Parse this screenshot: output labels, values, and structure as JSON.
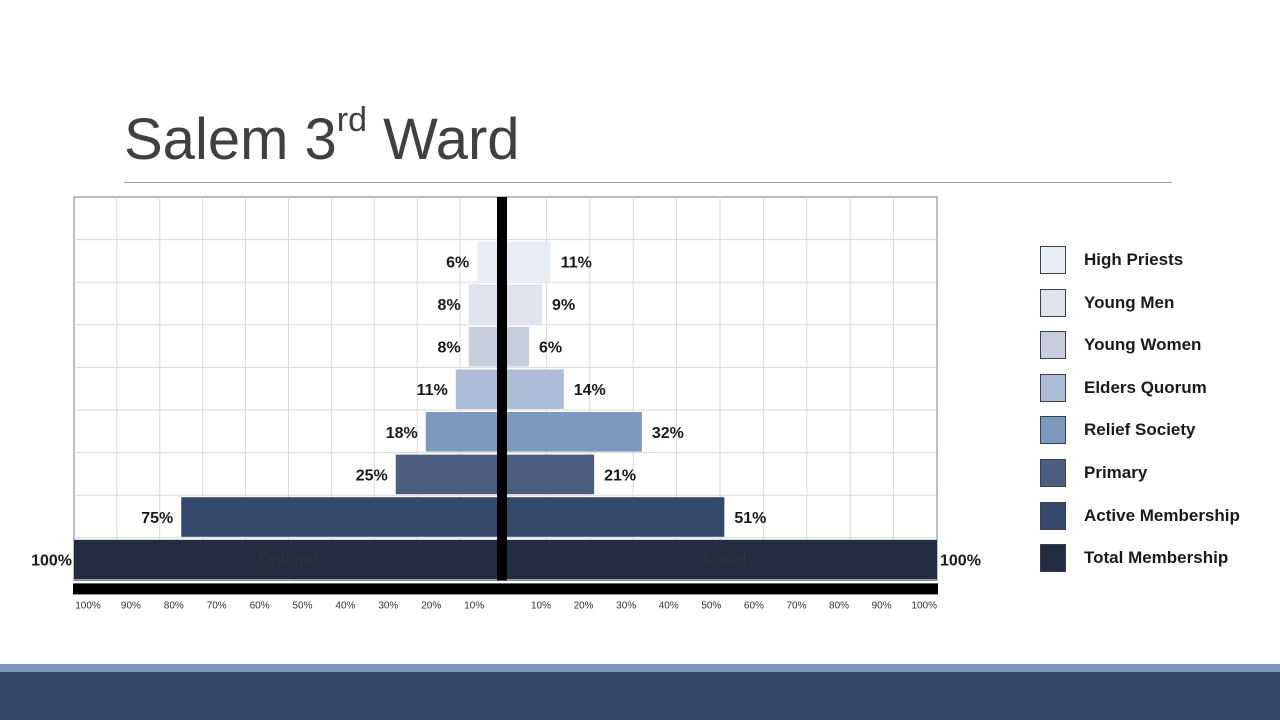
{
  "slide": {
    "title_main": "Salem 3",
    "title_sup": "rd",
    "title_end": " Ward"
  },
  "chart_data": {
    "type": "bar",
    "orientation": "horizontal-butterfly",
    "categories": [
      "High Priests",
      "Young Men",
      "Young Women",
      "Elders Quorum",
      "Relief Society",
      "Primary",
      "Active Membership",
      "Total Membership"
    ],
    "series": [
      {
        "name": "Optimal",
        "side": "left",
        "values": [
          6,
          8,
          8,
          11,
          18,
          25,
          75,
          100
        ],
        "labels": [
          "6%",
          "8%",
          "8%",
          "11%",
          "18%",
          "25%",
          "75%",
          "100%"
        ]
      },
      {
        "name": "Actual",
        "side": "right",
        "values": [
          11,
          9,
          6,
          14,
          32,
          21,
          51,
          100
        ],
        "labels": [
          "11%",
          "9%",
          "6%",
          "14%",
          "32%",
          "21%",
          "51%",
          "100%"
        ]
      }
    ],
    "colors": [
      "#e9edf4",
      "#dfe3ec",
      "#c7cddc",
      "#adbdd8",
      "#7d99bf",
      "#4d5d80",
      "#34496b",
      "#222d42"
    ],
    "xlim": [
      0,
      100
    ],
    "left_ticks": [
      "100%",
      "90%",
      "80%",
      "70%",
      "60%",
      "50%",
      "40%",
      "30%",
      "20%",
      "10%"
    ],
    "right_ticks": [
      "10%",
      "20%",
      "30%",
      "40%",
      "50%",
      "60%",
      "70%",
      "80%",
      "90%",
      "100%"
    ],
    "grid": true,
    "legend_position": "right"
  },
  "theme": {
    "accent": "#33476a",
    "accent_light": "#7f97bd"
  }
}
